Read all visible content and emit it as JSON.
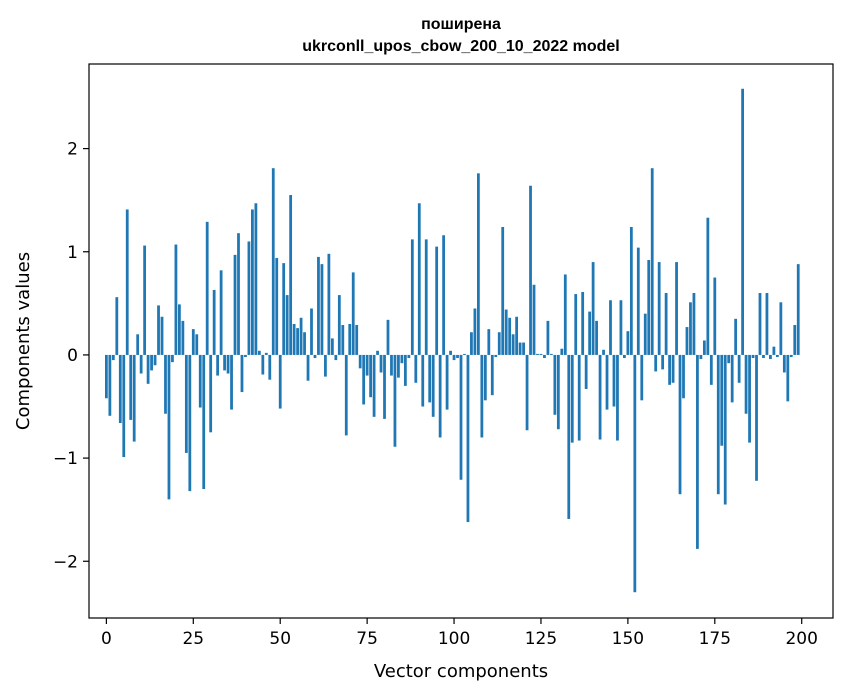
{
  "chart_data": {
    "type": "bar",
    "title_line1": "поширена",
    "title_line2": "ukrconll_upos_cbow_200_10_2022 model",
    "xlabel": "Vector components",
    "ylabel": "Components values",
    "xlim": [
      -5,
      209
    ],
    "ylim": [
      -2.55,
      2.82
    ],
    "xticks": [
      0,
      25,
      50,
      75,
      100,
      125,
      150,
      175,
      200
    ],
    "xtick_labels": [
      "0",
      "25",
      "50",
      "75",
      "100",
      "125",
      "150",
      "175",
      "200"
    ],
    "yticks": [
      -2,
      -1,
      0,
      1,
      2
    ],
    "ytick_labels": [
      "−2",
      "−1",
      "0",
      "1",
      "2"
    ],
    "grid": false,
    "bar_color": "#1f77b4",
    "x": [
      0,
      1,
      2,
      3,
      4,
      5,
      6,
      7,
      8,
      9,
      10,
      11,
      12,
      13,
      14,
      15,
      16,
      17,
      18,
      19,
      20,
      21,
      22,
      23,
      24,
      25,
      26,
      27,
      28,
      29,
      30,
      31,
      32,
      33,
      34,
      35,
      36,
      37,
      38,
      39,
      40,
      41,
      42,
      43,
      44,
      45,
      46,
      47,
      48,
      49,
      50,
      51,
      52,
      53,
      54,
      55,
      56,
      57,
      58,
      59,
      60,
      61,
      62,
      63,
      64,
      65,
      66,
      67,
      68,
      69,
      70,
      71,
      72,
      73,
      74,
      75,
      76,
      77,
      78,
      79,
      80,
      81,
      82,
      83,
      84,
      85,
      86,
      87,
      88,
      89,
      90,
      91,
      92,
      93,
      94,
      95,
      96,
      97,
      98,
      99,
      100,
      101,
      102,
      103,
      104,
      105,
      106,
      107,
      108,
      109,
      110,
      111,
      112,
      113,
      114,
      115,
      116,
      117,
      118,
      119,
      120,
      121,
      122,
      123,
      124,
      125,
      126,
      127,
      128,
      129,
      130,
      131,
      132,
      133,
      134,
      135,
      136,
      137,
      138,
      139,
      140,
      141,
      142,
      143,
      144,
      145,
      146,
      147,
      148,
      149,
      150,
      151,
      152,
      153,
      154,
      155,
      156,
      157,
      158,
      159,
      160,
      161,
      162,
      163,
      164,
      165,
      166,
      167,
      168,
      169,
      170,
      171,
      172,
      173,
      174,
      175,
      176,
      177,
      178,
      179,
      180,
      181,
      182,
      183,
      184,
      185,
      186,
      187,
      188,
      189,
      190,
      191,
      192,
      193,
      194,
      195,
      196,
      197,
      198,
      199
    ],
    "values": [
      -0.42,
      -0.59,
      -0.05,
      0.56,
      -0.66,
      -0.99,
      1.41,
      -0.63,
      -0.84,
      0.2,
      -0.18,
      1.06,
      -0.28,
      -0.15,
      -0.1,
      0.48,
      0.37,
      -0.57,
      -1.4,
      -0.07,
      1.07,
      0.49,
      0.33,
      -0.95,
      -1.32,
      0.25,
      0.2,
      -0.51,
      -1.3,
      1.29,
      -0.75,
      0.63,
      -0.2,
      0.82,
      -0.15,
      -0.18,
      -0.53,
      0.97,
      1.18,
      -0.36,
      -0.02,
      1.1,
      1.41,
      1.47,
      0.04,
      -0.19,
      0.02,
      -0.24,
      1.81,
      0.94,
      -0.52,
      0.89,
      0.58,
      1.55,
      0.3,
      0.26,
      0.36,
      0.22,
      -0.25,
      0.45,
      -0.03,
      0.95,
      0.88,
      -0.21,
      0.98,
      0.16,
      -0.05,
      0.58,
      0.29,
      -0.78,
      0.3,
      0.8,
      0.29,
      -0.13,
      -0.48,
      -0.2,
      -0.41,
      -0.6,
      0.04,
      -0.17,
      -0.62,
      0.34,
      -0.2,
      -0.89,
      -0.22,
      -0.08,
      -0.3,
      -0.03,
      1.12,
      -0.27,
      1.47,
      -0.5,
      1.12,
      -0.46,
      -0.6,
      1.05,
      -0.8,
      1.16,
      -0.53,
      0.04,
      -0.05,
      -0.03,
      -1.21,
      0.01,
      -1.62,
      0.22,
      0.45,
      1.76,
      -0.8,
      -0.44,
      0.25,
      -0.39,
      -0.02,
      0.22,
      1.24,
      0.44,
      0.36,
      0.2,
      0.37,
      0.12,
      0.12,
      -0.73,
      1.64,
      0.68,
      0.01,
      0.01,
      -0.03,
      0.33,
      0.01,
      -0.58,
      -0.72,
      0.06,
      0.78,
      -1.59,
      -0.85,
      0.59,
      -0.83,
      0.61,
      -0.33,
      0.42,
      0.9,
      0.33,
      -0.82,
      0.05,
      -0.53,
      0.53,
      -0.5,
      -0.83,
      0.53,
      -0.03,
      0.23,
      1.24,
      -2.3,
      1.04,
      -0.44,
      0.4,
      0.92,
      1.81,
      -0.16,
      0.9,
      -0.14,
      0.6,
      -0.29,
      -0.27,
      0.9,
      -1.35,
      -0.42,
      0.27,
      0.51,
      0.6,
      -1.88,
      -0.04,
      0.14,
      1.33,
      -0.29,
      0.75,
      -1.35,
      -0.88,
      -1.45,
      -0.08,
      -0.46,
      0.35,
      -0.27,
      2.58,
      -0.57,
      -0.85,
      -0.03,
      -1.22,
      0.6,
      -0.03,
      0.6,
      -0.04,
      0.08,
      -0.02,
      0.51,
      -0.17,
      -0.45,
      -0.02,
      0.29,
      0.88
    ]
  }
}
